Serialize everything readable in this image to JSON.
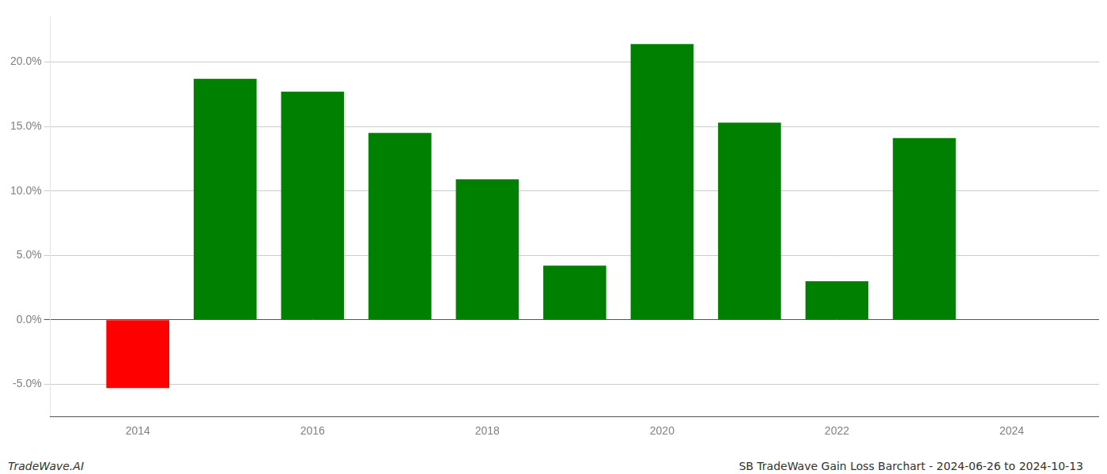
{
  "chart_data": {
    "type": "bar",
    "title": "SB TradeWave Gain Loss Barchart - 2024-06-26 to 2024-10-13",
    "annotations": [
      "TradeWave.AI"
    ],
    "x": [
      2014,
      2015,
      2016,
      2017,
      2018,
      2019,
      2020,
      2021,
      2022,
      2023
    ],
    "values": [
      -5.3,
      18.7,
      17.7,
      14.5,
      10.9,
      4.2,
      21.4,
      15.3,
      3.0,
      14.1
    ],
    "colors": [
      "#ff0000",
      "#008000",
      "#008000",
      "#008000",
      "#008000",
      "#008000",
      "#008000",
      "#008000",
      "#008000",
      "#008000"
    ],
    "xlim": [
      2013,
      2025
    ],
    "xticks": [
      2014,
      2016,
      2018,
      2020,
      2022,
      2024
    ],
    "ylim": [
      -7.5,
      23.5
    ],
    "yticks": [
      {
        "value": -5.0,
        "label": "-5.0%"
      },
      {
        "value": 0.0,
        "label": "0.0%"
      },
      {
        "value": 5.0,
        "label": "5.0%"
      },
      {
        "value": 10.0,
        "label": "10.0%"
      },
      {
        "value": 15.0,
        "label": "15.0%"
      },
      {
        "value": 20.0,
        "label": "20.0%"
      }
    ],
    "grid": true
  }
}
